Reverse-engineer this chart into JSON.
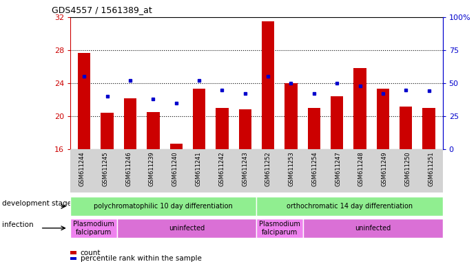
{
  "title": "GDS4557 / 1561389_at",
  "samples": [
    "GSM611244",
    "GSM611245",
    "GSM611246",
    "GSM611239",
    "GSM611240",
    "GSM611241",
    "GSM611242",
    "GSM611243",
    "GSM611252",
    "GSM611253",
    "GSM611254",
    "GSM611247",
    "GSM611248",
    "GSM611249",
    "GSM611250",
    "GSM611251"
  ],
  "count_values": [
    27.7,
    20.4,
    22.2,
    20.5,
    16.7,
    23.3,
    21.0,
    20.8,
    31.5,
    24.0,
    21.0,
    22.4,
    25.8,
    23.3,
    21.2,
    21.0
  ],
  "percentile_values": [
    55,
    40,
    52,
    38,
    35,
    52,
    45,
    42,
    55,
    50,
    42,
    50,
    48,
    42,
    45,
    44
  ],
  "y_min": 16,
  "y_max": 32,
  "y_ticks_left": [
    16,
    20,
    24,
    28,
    32
  ],
  "y_ticks_right_vals": [
    0,
    25,
    50,
    75,
    100
  ],
  "y_ticks_right_labels": [
    "0",
    "25",
    "50",
    "75",
    "100%"
  ],
  "bar_color": "#cc0000",
  "percentile_color": "#0000cc",
  "grid_dotted_at": [
    20,
    24,
    28
  ],
  "bg_color": "#ffffff",
  "tick_bg_color": "#d3d3d3",
  "dev_stage_groups": [
    {
      "label": "polychromatophilic 10 day differentiation",
      "start": 0,
      "end": 8,
      "color": "#90ee90"
    },
    {
      "label": "orthochromatic 14 day differentiation",
      "start": 8,
      "end": 16,
      "color": "#90ee90"
    }
  ],
  "infection_groups": [
    {
      "label": "Plasmodium\nfalciparum",
      "start": 0,
      "end": 2,
      "color": "#ee82ee"
    },
    {
      "label": "uninfected",
      "start": 2,
      "end": 8,
      "color": "#da70d6"
    },
    {
      "label": "Plasmodium\nfalciparum",
      "start": 8,
      "end": 10,
      "color": "#ee82ee"
    },
    {
      "label": "uninfected",
      "start": 10,
      "end": 16,
      "color": "#da70d6"
    }
  ],
  "left_label_dev": "development stage",
  "left_label_inf": "infection",
  "legend_count_label": "count",
  "legend_pct_label": "percentile rank within the sample",
  "left_axis_color": "#cc0000",
  "right_axis_color": "#0000cc"
}
